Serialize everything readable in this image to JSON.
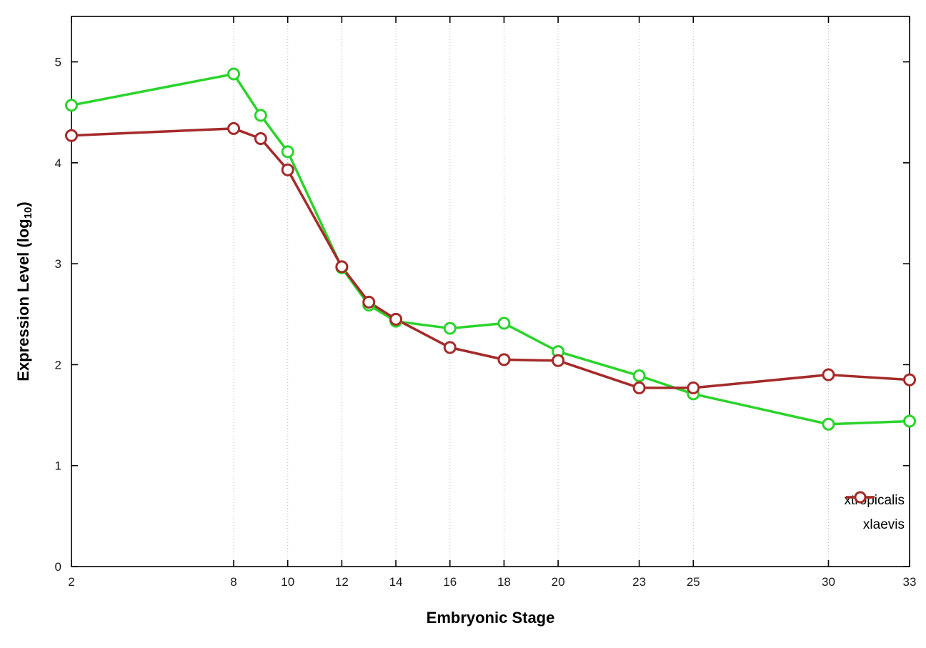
{
  "chart_data": {
    "type": "line",
    "title": "",
    "xlabel": "Embryonic Stage",
    "ylabel": "Expression Level (log10)",
    "ylabel_parts": {
      "main": "Expression Level (log",
      "sub": "10",
      "close": ")"
    },
    "x": [
      2,
      8,
      9,
      10,
      12,
      13,
      14,
      16,
      18,
      20,
      23,
      25,
      30,
      33
    ],
    "series": [
      {
        "name": "xtropicalis",
        "color": "#2bd42b",
        "values": [
          4.57,
          4.88,
          4.47,
          4.11,
          2.96,
          2.59,
          2.43,
          2.36,
          2.41,
          2.13,
          1.89,
          1.71,
          1.41,
          1.44
        ]
      },
      {
        "name": "xlaevis",
        "color": "#a52a2a",
        "values": [
          4.27,
          4.34,
          4.24,
          3.93,
          2.97,
          2.62,
          2.45,
          2.17,
          2.05,
          2.04,
          1.77,
          1.77,
          1.9,
          1.85
        ]
      }
    ],
    "xlim": [
      2,
      33
    ],
    "ylim": [
      0,
      5.45
    ],
    "xticks": [
      2,
      8,
      10,
      12,
      14,
      16,
      18,
      20,
      23,
      25,
      30,
      33
    ],
    "yticks": [
      0,
      1,
      2,
      3,
      4,
      5
    ],
    "grid": "vertical-dotted",
    "legend_position": "bottom-right",
    "marker": "open-circle",
    "background": "#ffffff",
    "axis_color": "#000000"
  }
}
